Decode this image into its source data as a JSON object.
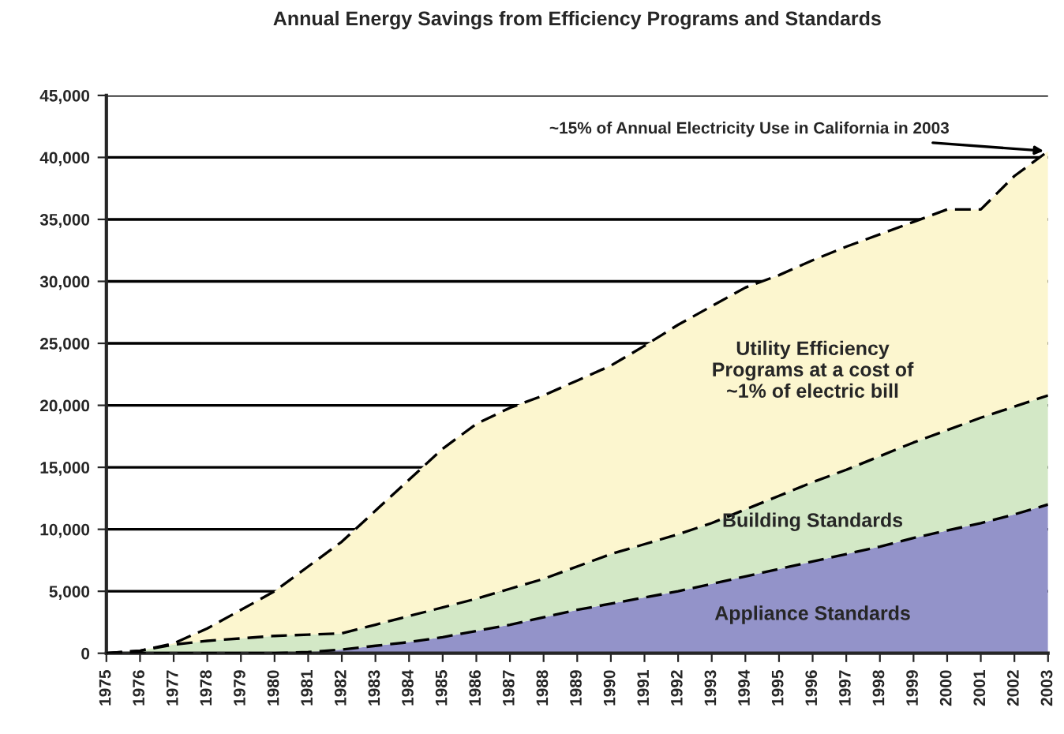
{
  "chart_data": {
    "type": "area",
    "stacked": true,
    "title": "Annual Energy Savings from Efficiency Programs and Standards",
    "categories": [
      "1975",
      "1976",
      "1977",
      "1978",
      "1979",
      "1980",
      "1981",
      "1982",
      "1983",
      "1984",
      "1985",
      "1986",
      "1987",
      "1988",
      "1989",
      "1990",
      "1991",
      "1992",
      "1993",
      "1994",
      "1995",
      "1996",
      "1997",
      "1998",
      "1999",
      "2000",
      "2001",
      "2002",
      "2003"
    ],
    "series": [
      {
        "name": "Appliance Standards",
        "color": "#9393c9",
        "values": [
          0,
          0,
          0,
          0,
          0,
          0,
          100,
          300,
          600,
          900,
          1300,
          1800,
          2300,
          2900,
          3500,
          4000,
          4500,
          5000,
          5600,
          6200,
          6800,
          7400,
          8000,
          8600,
          9300,
          9900,
          10500,
          11200,
          12000
        ]
      },
      {
        "name": "Building Standards",
        "color": "#d3e8c6",
        "values": [
          0,
          200,
          700,
          1000,
          1200,
          1400,
          1400,
          1300,
          1700,
          2100,
          2400,
          2600,
          2900,
          3100,
          3500,
          4000,
          4300,
          4600,
          4900,
          5400,
          5900,
          6400,
          6800,
          7300,
          7700,
          8100,
          8500,
          8700,
          8800
        ]
      },
      {
        "name": "Utility Efficiency\nPrograms at a cost of\n~1% of electric bill",
        "color": "#fcf6cf",
        "values": [
          0,
          0,
          100,
          1000,
          2300,
          3600,
          5500,
          7400,
          9200,
          11000,
          12800,
          14100,
          14600,
          14800,
          15000,
          15200,
          16000,
          16900,
          17500,
          17900,
          17800,
          17900,
          18000,
          17900,
          17800,
          17800,
          16800,
          18600,
          19700
        ]
      }
    ],
    "ylim": [
      0,
      45000
    ],
    "yticks": [
      {
        "value": 0,
        "label": "0"
      },
      {
        "value": 5000,
        "label": "5,000"
      },
      {
        "value": 10000,
        "label": "10,000"
      },
      {
        "value": 15000,
        "label": "15,000"
      },
      {
        "value": 20000,
        "label": "20,000"
      },
      {
        "value": 25000,
        "label": "25,000"
      },
      {
        "value": 30000,
        "label": "30,000"
      },
      {
        "value": 35000,
        "label": "35,000"
      },
      {
        "value": 40000,
        "label": "40,000"
      },
      {
        "value": 45000,
        "label": "45,000"
      }
    ],
    "grid": "y",
    "line_style": "dashed",
    "legend": false,
    "annotations": [
      {
        "text": "~15% of Annual Electricity Use in California in 2003",
        "x": "2003",
        "y": 40500
      }
    ]
  }
}
